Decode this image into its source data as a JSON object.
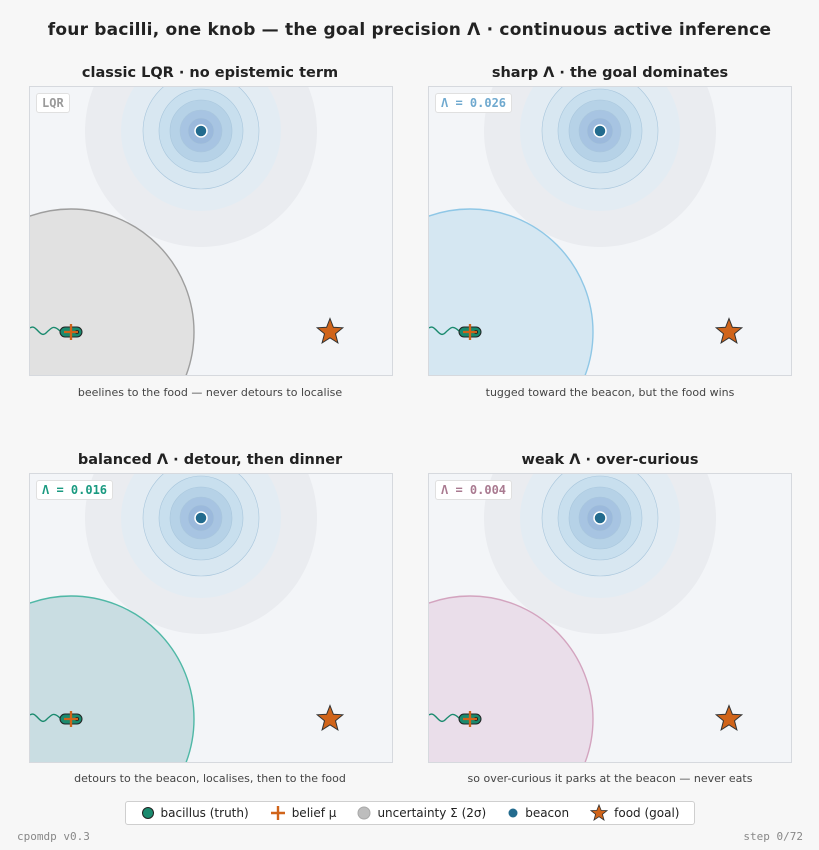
{
  "title": "four bacilli, one knob — the goal precision Λ  ·  continuous active inference",
  "panels": [
    {
      "title": "classic LQR  ·  no epistemic term",
      "badge": "LQR",
      "badge_color": "#9a9a9a",
      "uncertainty_color": "#9e9e9e",
      "uncertainty_fill": "#e1e1e1",
      "caption": "beelines to the food — never detours to localise"
    },
    {
      "title": "sharp Λ  ·  the goal dominates",
      "badge": "Λ = 0.026",
      "badge_color": "#6fa9cf",
      "uncertainty_color": "#8fc7e6",
      "uncertainty_fill": "#d5e7f2",
      "caption": "tugged toward the beacon, but the food wins"
    },
    {
      "title": "balanced Λ  ·  detour, then dinner",
      "badge": "Λ = 0.016",
      "badge_color": "#1a9a80",
      "uncertainty_color": "#4fb8a6",
      "uncertainty_fill": "#c9dde2",
      "caption": "detours to the beacon, localises, then to the food"
    },
    {
      "title": "weak Λ  ·  over-curious",
      "badge": "Λ = 0.004",
      "badge_color": "#a97a90",
      "uncertainty_color": "#d3a4bf",
      "uncertainty_fill": "#eadeea",
      "caption": "so over-curious it parks at the beacon — never eats"
    }
  ],
  "legend": {
    "bacillus": "bacillus (truth)",
    "belief": "belief μ",
    "uncertainty": "uncertainty Σ (2σ)",
    "beacon": "beacon",
    "food": "food (goal)"
  },
  "colors": {
    "bacillus": "#1a8a6e",
    "belief": "#d0641a",
    "food": "#d0641a",
    "beacon": "#236b8e"
  },
  "footer": {
    "version": "cpomdp v0.3",
    "step": "step  0/72"
  }
}
